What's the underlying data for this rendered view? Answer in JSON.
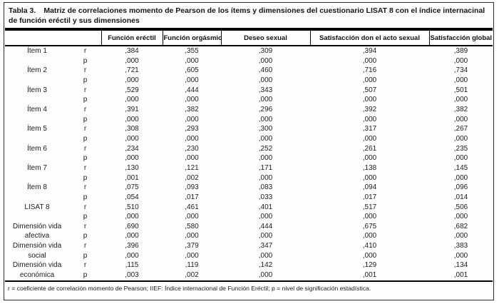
{
  "document": {
    "title_label": "Tabla 3.",
    "title_text": "Matriz de correlaciones momento de Pearson de los ítems y dimensiones del cuestionario LISAT 8 con el índice internacinal de función eréctil y sus dimensiones",
    "footnote": "r = coeficiente de correlación momento de Pearson; IIEF: Índice internacional de Función Eréctil; p = nivel de significación estadística."
  },
  "table": {
    "stat_labels": {
      "r": "r",
      "p": "p"
    },
    "columns": [
      "Función eréctil",
      "Función orgásmica",
      "Deseo sexual",
      "Satisfacción don el acto sexual",
      "Satisfacción global"
    ],
    "rows": [
      {
        "label": "Ítem 1",
        "label2": "",
        "r": [
          ",384",
          ",355",
          ",309",
          ",394",
          ",389"
        ],
        "p": [
          ",000",
          ",000",
          ",000",
          ",000",
          ",000"
        ]
      },
      {
        "label": "Ítem 2",
        "label2": "",
        "r": [
          ",721",
          ",605",
          ",460",
          ",716",
          ",734"
        ],
        "p": [
          ",000",
          ",000",
          ",000",
          ",000",
          ",000"
        ]
      },
      {
        "label": "Ítem 3",
        "label2": "",
        "r": [
          ",529",
          ",444",
          ",343",
          ",507",
          ",501"
        ],
        "p": [
          ",000",
          ",000",
          ",000",
          ",000",
          ",000"
        ]
      },
      {
        "label": "Ítem 4",
        "label2": "",
        "r": [
          ",391",
          ",382",
          ",296",
          ",392",
          ",382"
        ],
        "p": [
          ",000",
          ",000",
          ",000",
          ",000",
          ",000"
        ]
      },
      {
        "label": "Ítem 5",
        "label2": "",
        "r": [
          ",308",
          ",293",
          ",300",
          ",317",
          ",267"
        ],
        "p": [
          ",000",
          ",000",
          ",000",
          ",000",
          ",000"
        ]
      },
      {
        "label": "Ítem 6",
        "label2": "",
        "r": [
          ",234",
          ",230",
          ",252",
          ",261",
          ",235"
        ],
        "p": [
          ",000",
          ",000",
          ",000",
          ",000",
          ",000"
        ]
      },
      {
        "label": "Ítem 7",
        "label2": "",
        "r": [
          ",130",
          ",121",
          ",171",
          ",138",
          ",145"
        ],
        "p": [
          ",001",
          ",002",
          ",000",
          ",000",
          ",000"
        ]
      },
      {
        "label": "Ítem 8",
        "label2": "",
        "r": [
          ",075",
          ",093",
          ",083",
          ",094",
          ",096"
        ],
        "p": [
          ",054",
          ",017",
          ",033",
          ",017",
          ",014"
        ]
      },
      {
        "label": "LISAT 8",
        "label2": "",
        "r": [
          ",510",
          ",461",
          ",401",
          ",517",
          ",506"
        ],
        "p": [
          ",000",
          ",000",
          ",000",
          ",000",
          ",000"
        ]
      },
      {
        "label": "Dimensión vida",
        "label2": "afectiva",
        "r": [
          ",690",
          ",580",
          ",444",
          ",675",
          ",682"
        ],
        "p": [
          ",000",
          ",000",
          ",000",
          ",000",
          ",000"
        ]
      },
      {
        "label": "Dimensión vida",
        "label2": "social",
        "r": [
          ",396",
          ",379",
          ",347",
          ",410",
          ",383"
        ],
        "p": [
          ",000",
          ",000",
          ",000",
          ",000",
          ",000"
        ]
      },
      {
        "label": "Dimensión vida",
        "label2": "económica",
        "r": [
          ",115",
          ",119",
          ",142",
          ",129",
          ",134"
        ],
        "p": [
          ",003",
          ",002",
          ",000",
          ",001",
          ",001"
        ]
      }
    ]
  }
}
